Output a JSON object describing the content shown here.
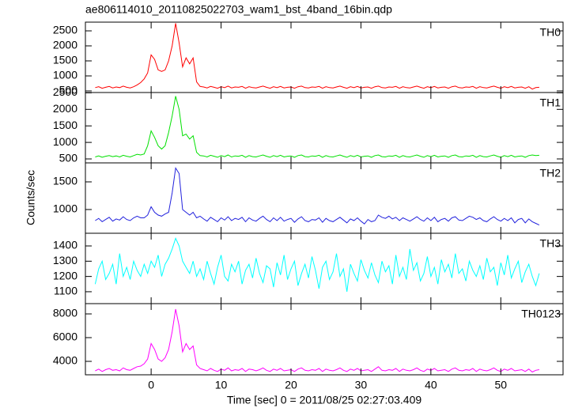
{
  "chart_data": {
    "type": "line",
    "title": "ae806114010_20110825022703_wam1_bst_4band_16bin.qdp",
    "xlabel": "Time [sec] 0 = 2011/08/25 02:27:03.409",
    "ylabel": "Counts/sec",
    "xlim": [
      -9.4,
      58.9
    ],
    "xticks": [
      0,
      10,
      20,
      30,
      40,
      50
    ],
    "x": [
      -8,
      -7.5,
      -7,
      -6.5,
      -6,
      -5.5,
      -5,
      -4.5,
      -4,
      -3.5,
      -3,
      -2.5,
      -2,
      -1.5,
      -1,
      -0.5,
      0,
      0.5,
      1,
      1.5,
      2,
      2.5,
      3,
      3.5,
      4,
      4.5,
      5,
      5.5,
      6,
      6.5,
      7,
      7.5,
      8,
      8.5,
      9,
      9.5,
      10,
      10.5,
      11,
      11.5,
      12,
      12.5,
      13,
      13.5,
      14,
      14.5,
      15,
      15.5,
      16,
      16.5,
      17,
      17.5,
      18,
      18.5,
      19,
      19.5,
      20,
      20.5,
      21,
      21.5,
      22,
      22.5,
      23,
      23.5,
      24,
      24.5,
      25,
      25.5,
      26,
      26.5,
      27,
      27.5,
      28,
      28.5,
      29,
      29.5,
      30,
      30.5,
      31,
      31.5,
      32,
      32.5,
      33,
      33.5,
      34,
      34.5,
      35,
      35.5,
      36,
      36.5,
      37,
      37.5,
      38,
      38.5,
      39,
      39.5,
      40,
      40.5,
      41,
      41.5,
      42,
      42.5,
      43,
      43.5,
      44,
      44.5,
      45,
      45.5,
      46,
      46.5,
      47,
      47.5,
      48,
      48.5,
      49,
      49.5,
      50,
      50.5,
      51,
      51.5,
      52,
      52.5,
      53,
      53.5,
      54,
      54.5,
      55,
      55.5
    ],
    "series": [
      {
        "name": "TH0",
        "color": "#ff0000",
        "ylim": [
          447,
          2790
        ],
        "yticks": [
          500,
          1000,
          1500,
          2000,
          2500
        ],
        "values": [
          610,
          640,
          590,
          620,
          650,
          600,
          630,
          610,
          660,
          620,
          600,
          640,
          700,
          780,
          900,
          1100,
          1700,
          1550,
          1200,
          1150,
          1200,
          1500,
          2000,
          2750,
          2100,
          1300,
          1600,
          1400,
          1600,
          800,
          650,
          630,
          600,
          650,
          620,
          590,
          640,
          610,
          660,
          600,
          630,
          620,
          650,
          590,
          640,
          610,
          600,
          630,
          660,
          620,
          590,
          640,
          610,
          650,
          600,
          620,
          630,
          590,
          640,
          660,
          610,
          600,
          630,
          620,
          650,
          590,
          640,
          610,
          600,
          630,
          660,
          620,
          590,
          640,
          610,
          650,
          600,
          620,
          630,
          590,
          640,
          660,
          610,
          600,
          630,
          620,
          650,
          590,
          640,
          610,
          600,
          630,
          660,
          620,
          590,
          640,
          610,
          650,
          600,
          620,
          630,
          590,
          640,
          660,
          610,
          600,
          630,
          620,
          650,
          590,
          640,
          610,
          600,
          630,
          660,
          620,
          590,
          640,
          610,
          650,
          600,
          620,
          630,
          590,
          640,
          560,
          610,
          620
        ]
      },
      {
        "name": "TH1",
        "color": "#00e000",
        "ylim": [
          380,
          2510
        ],
        "yticks": [
          500,
          1000,
          1500,
          2000,
          2500
        ],
        "values": [
          560,
          590,
          550,
          580,
          600,
          570,
          590,
          560,
          610,
          580,
          560,
          600,
          640,
          620,
          650,
          900,
          1350,
          1150,
          900,
          800,
          900,
          1300,
          1800,
          2400,
          2000,
          1200,
          1250,
          1100,
          1200,
          700,
          600,
          590,
          560,
          610,
          580,
          550,
          600,
          570,
          620,
          560,
          590,
          580,
          610,
          550,
          600,
          570,
          560,
          590,
          620,
          580,
          550,
          600,
          570,
          610,
          560,
          580,
          590,
          550,
          600,
          620,
          570,
          560,
          590,
          580,
          610,
          550,
          600,
          570,
          560,
          590,
          620,
          580,
          550,
          600,
          570,
          610,
          560,
          580,
          590,
          550,
          600,
          620,
          570,
          560,
          590,
          580,
          610,
          550,
          600,
          570,
          560,
          590,
          620,
          580,
          550,
          600,
          570,
          610,
          560,
          580,
          590,
          550,
          600,
          620,
          570,
          560,
          590,
          580,
          610,
          550,
          600,
          570,
          560,
          590,
          620,
          580,
          550,
          600,
          570,
          610,
          560,
          580,
          590,
          550,
          600,
          620,
          600,
          610
        ]
      },
      {
        "name": "TH2",
        "color": "#2222dd",
        "ylim": [
          571,
          1843
        ],
        "yticks": [
          1000,
          1500
        ],
        "values": [
          800,
          840,
          780,
          820,
          860,
          790,
          830,
          810,
          870,
          820,
          800,
          850,
          880,
          850,
          850,
          900,
          1050,
          950,
          900,
          880,
          920,
          950,
          1300,
          1750,
          1650,
          1000,
          950,
          900,
          950,
          850,
          880,
          830,
          790,
          860,
          820,
          780,
          850,
          810,
          870,
          800,
          840,
          820,
          860,
          780,
          850,
          810,
          790,
          840,
          880,
          820,
          780,
          850,
          800,
          860,
          790,
          820,
          840,
          770,
          830,
          870,
          800,
          780,
          820,
          810,
          850,
          770,
          840,
          800,
          780,
          820,
          860,
          810,
          760,
          830,
          800,
          850,
          790,
          740,
          820,
          780,
          800,
          900,
          860,
          840,
          880,
          830,
          860,
          800,
          850,
          820,
          790,
          830,
          870,
          820,
          790,
          850,
          800,
          860,
          780,
          820,
          840,
          790,
          850,
          870,
          810,
          800,
          840,
          880,
          860,
          820,
          850,
          800,
          780,
          830,
          870,
          820,
          790,
          840,
          800,
          850,
          760,
          820,
          840,
          760,
          830,
          780,
          750,
          720
        ]
      },
      {
        "name": "TH3",
        "color": "#00ffff",
        "ylim": [
          1022,
          1483
        ],
        "yticks": [
          1100,
          1200,
          1300,
          1400
        ],
        "values": [
          1150,
          1250,
          1300,
          1180,
          1220,
          1280,
          1150,
          1350,
          1200,
          1260,
          1180,
          1300,
          1240,
          1200,
          1280,
          1220,
          1300,
          1260,
          1340,
          1200,
          1280,
          1320,
          1380,
          1450,
          1400,
          1300,
          1260,
          1220,
          1300,
          1200,
          1250,
          1180,
          1300,
          1220,
          1150,
          1260,
          1340,
          1200,
          1170,
          1280,
          1230,
          1300,
          1150,
          1240,
          1280,
          1190,
          1320,
          1220,
          1160,
          1270,
          1250,
          1130,
          1290,
          1210,
          1340,
          1180,
          1250,
          1300,
          1140,
          1220,
          1280,
          1190,
          1330,
          1240,
          1120,
          1260,
          1300,
          1180,
          1230,
          1350,
          1200,
          1250,
          1100,
          1280,
          1220,
          1170,
          1310,
          1240,
          1190,
          1290,
          1210,
          1160,
          1300,
          1230,
          1270,
          1150,
          1340,
          1200,
          1260,
          1180,
          1380,
          1240,
          1290,
          1170,
          1220,
          1330,
          1200,
          1260,
          1150,
          1310,
          1230,
          1280,
          1190,
          1350,
          1220,
          1250,
          1170,
          1300,
          1240,
          1200,
          1270,
          1180,
          1320,
          1230,
          1260,
          1140,
          1290,
          1210,
          1340,
          1190,
          1250,
          1300,
          1160,
          1230,
          1280,
          1200,
          1140,
          1220
        ]
      },
      {
        "name": "TH0123",
        "color": "#ff00ff",
        "ylim": [
          2867,
          8867
        ],
        "yticks": [
          4000,
          6000,
          8000
        ],
        "values": [
          3200,
          3350,
          3150,
          3300,
          3400,
          3250,
          3300,
          3200,
          3450,
          3300,
          3250,
          3400,
          3550,
          3600,
          3800,
          4200,
          5500,
          5000,
          4200,
          4000,
          4300,
          5000,
          6500,
          8400,
          7000,
          4800,
          5500,
          5000,
          5300,
          3700,
          3400,
          3300,
          3200,
          3400,
          3250,
          3150,
          3350,
          3250,
          3450,
          3200,
          3300,
          3250,
          3400,
          3150,
          3350,
          3300,
          3200,
          3300,
          3450,
          3250,
          3150,
          3350,
          3250,
          3400,
          3200,
          3250,
          3300,
          3150,
          3350,
          3450,
          3250,
          3200,
          3300,
          3250,
          3400,
          3150,
          3350,
          3250,
          3200,
          3300,
          3450,
          3250,
          3150,
          3350,
          3250,
          3400,
          3200,
          3250,
          3300,
          3150,
          3350,
          3550,
          3250,
          3200,
          3300,
          3250,
          3400,
          3150,
          3350,
          3250,
          3200,
          3300,
          3450,
          3250,
          3150,
          3350,
          3250,
          3400,
          3200,
          3250,
          3300,
          3150,
          3350,
          3450,
          3250,
          3200,
          3300,
          3250,
          3400,
          3150,
          3350,
          3250,
          3200,
          3300,
          3450,
          3250,
          3150,
          3350,
          3250,
          3400,
          3200,
          3250,
          3300,
          3150,
          3350,
          3100,
          3250,
          3300
        ]
      }
    ]
  }
}
